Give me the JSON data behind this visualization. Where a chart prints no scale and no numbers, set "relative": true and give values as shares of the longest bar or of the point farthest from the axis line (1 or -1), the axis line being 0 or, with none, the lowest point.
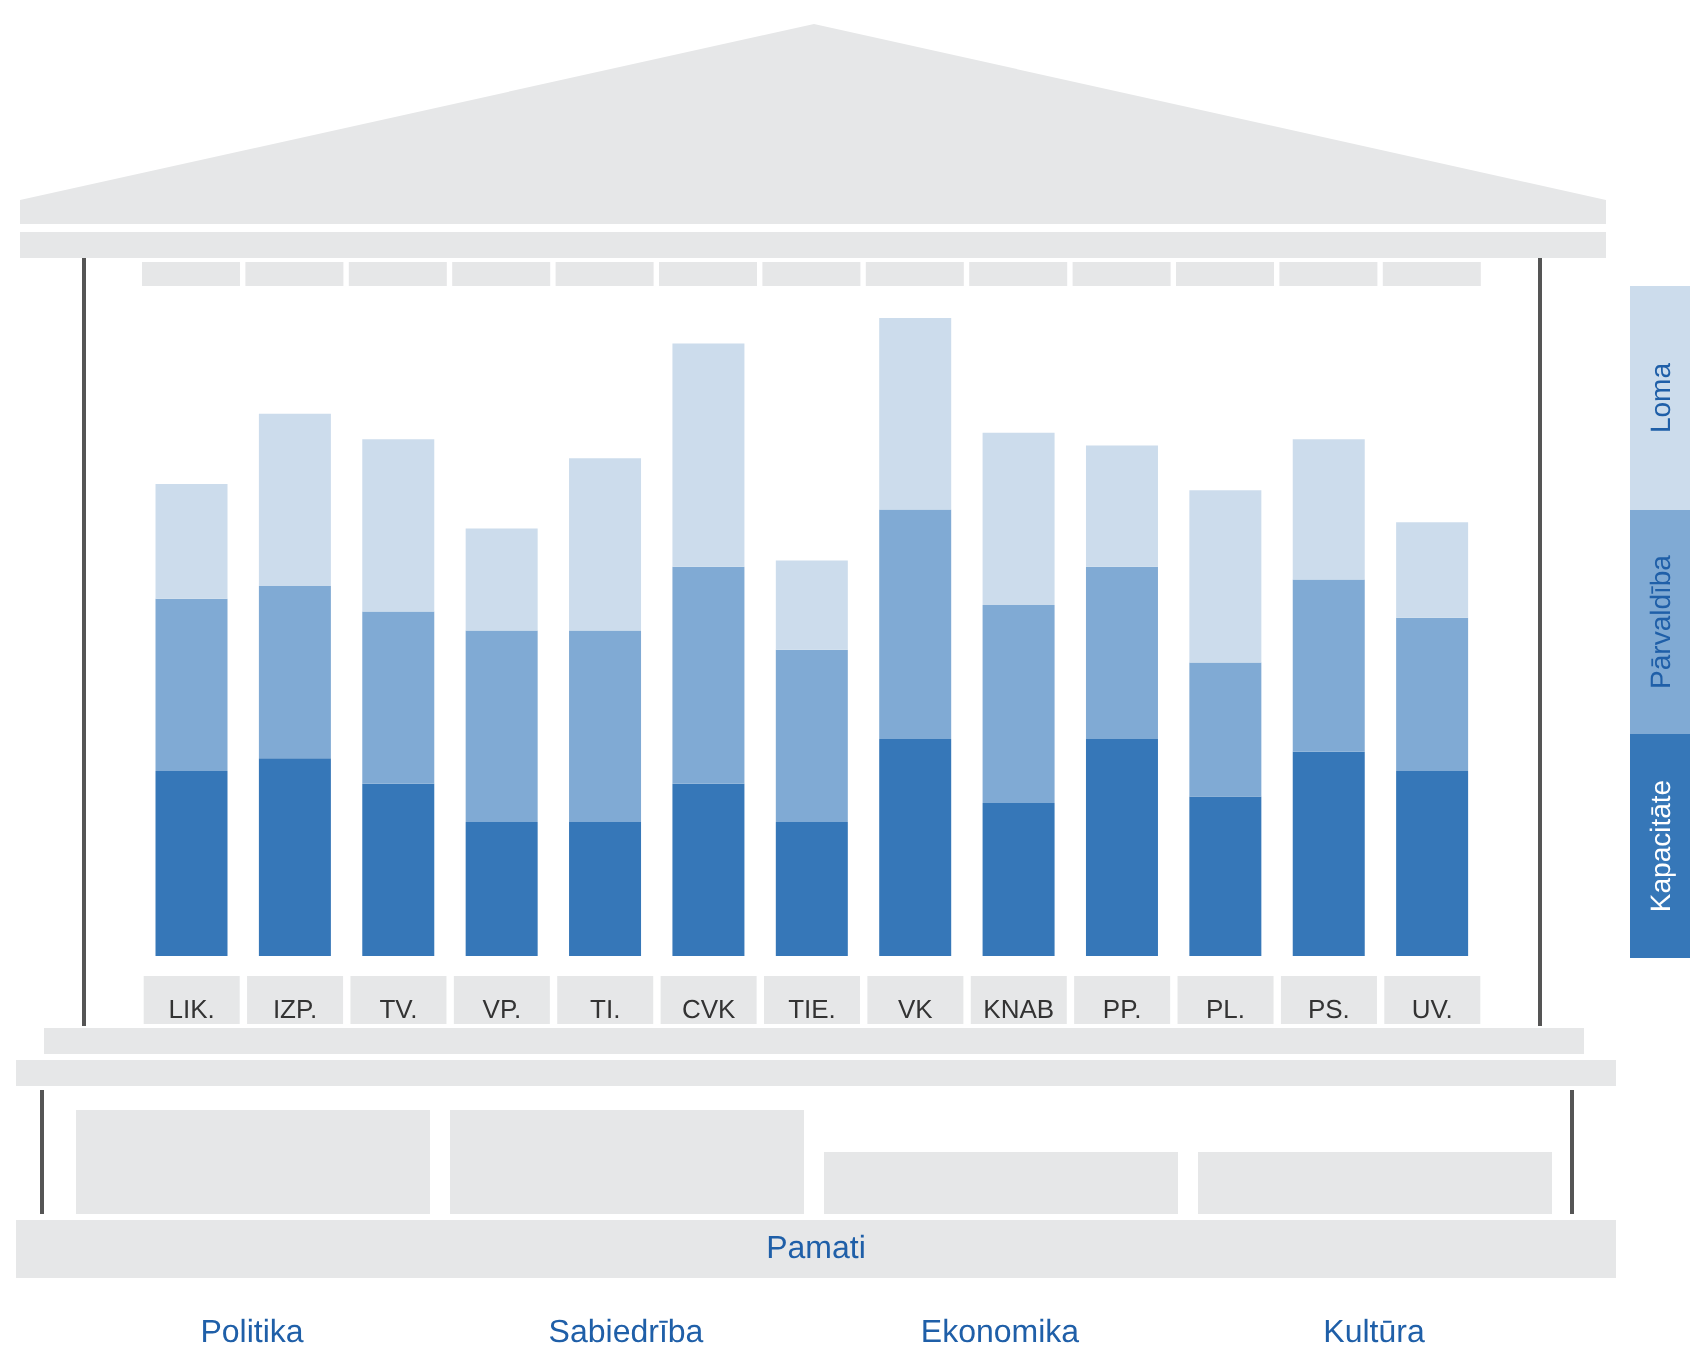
{
  "chart_data": {
    "type": "bar",
    "stacked": true,
    "relative": true,
    "legend": "right",
    "categories": [
      "LIK.",
      "IZP.",
      "TV.",
      "VP.",
      "TI.",
      "CVK",
      "TIE.",
      "VK",
      "KNAB",
      "PP.",
      "PL.",
      "PS.",
      "UV."
    ],
    "series": [
      {
        "name": "Kapacitāte",
        "color": "#3677b8",
        "values": [
          0.29,
          0.31,
          0.27,
          0.21,
          0.21,
          0.27,
          0.21,
          0.34,
          0.24,
          0.34,
          0.25,
          0.32,
          0.29
        ]
      },
      {
        "name": "Pārvaldība",
        "color": "#80aad4",
        "values": [
          0.27,
          0.27,
          0.27,
          0.3,
          0.3,
          0.34,
          0.27,
          0.36,
          0.31,
          0.27,
          0.21,
          0.27,
          0.24
        ]
      },
      {
        "name": "Loma",
        "color": "#ccdcec",
        "values": [
          0.18,
          0.27,
          0.27,
          0.16,
          0.27,
          0.35,
          0.14,
          0.3,
          0.27,
          0.19,
          0.27,
          0.22,
          0.15
        ]
      }
    ],
    "annotations": [
      "Pamati",
      "Politika",
      "Sabiedrība",
      "Ekonomika",
      "Kultūra"
    ]
  }
}
